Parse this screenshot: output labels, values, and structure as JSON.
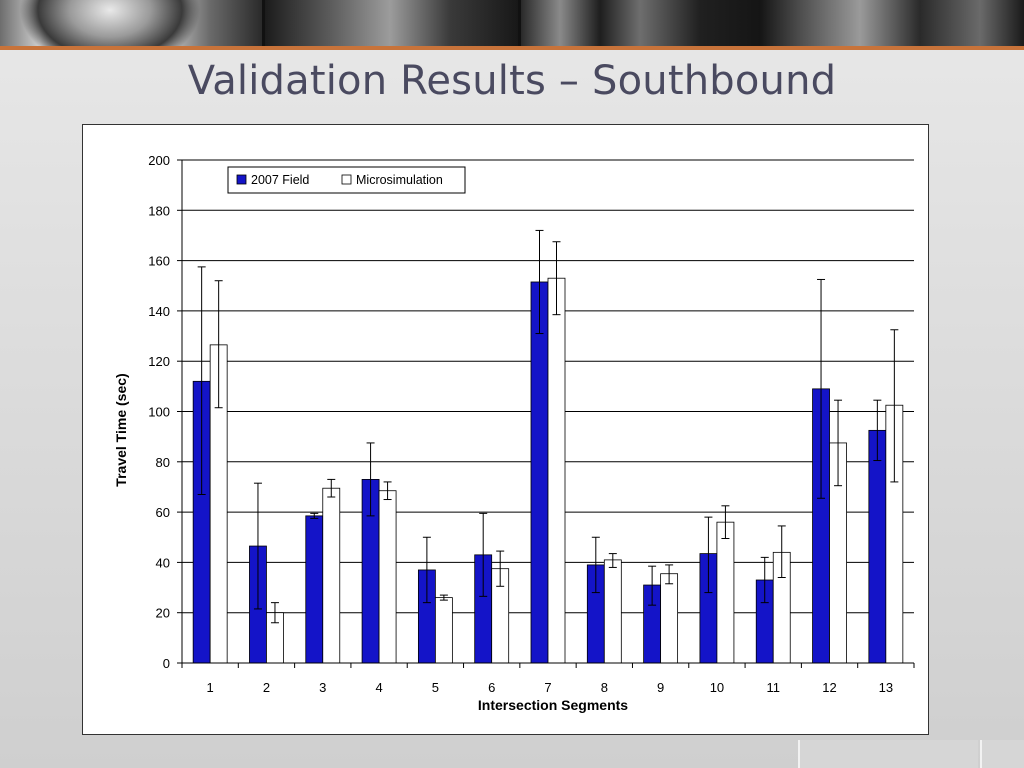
{
  "slide": {
    "title": "Validation Results – Southbound"
  },
  "colors": {
    "accent_rule": "#c8733a",
    "field_bar": "#1414c8",
    "micro_bar": "#ffffff"
  },
  "chart_data": {
    "type": "bar",
    "xlabel": "Intersection Segments",
    "ylabel": "Travel Time (sec)",
    "ylim": [
      0,
      200
    ],
    "yticks": [
      0,
      20,
      40,
      60,
      80,
      100,
      120,
      140,
      160,
      180,
      200
    ],
    "grid": true,
    "legend_position": "top-left",
    "categories": [
      "1",
      "2",
      "3",
      "4",
      "5",
      "6",
      "7",
      "8",
      "9",
      "10",
      "11",
      "12",
      "13"
    ],
    "series": [
      {
        "name": "2007 Field",
        "color": "#1414c8",
        "values": [
          112,
          46.5,
          58.5,
          73,
          37,
          43,
          151.5,
          39,
          31,
          43.5,
          33,
          109,
          92.5
        ],
        "error_low": [
          67,
          21.5,
          57.5,
          58.5,
          24,
          26.5,
          131,
          28,
          23,
          28,
          24,
          65.5,
          80.5
        ],
        "error_high": [
          157.5,
          71.5,
          59.5,
          87.5,
          50,
          59.5,
          172,
          50,
          38.5,
          58,
          42,
          152.5,
          104.5
        ]
      },
      {
        "name": "Microsimulation",
        "color": "#ffffff",
        "values": [
          126.5,
          20,
          69.5,
          68.5,
          26,
          37.5,
          153,
          41,
          35.5,
          56,
          44,
          87.5,
          102.5
        ],
        "error_low": [
          101.5,
          16,
          66,
          65,
          25,
          30.5,
          138.5,
          38,
          31.5,
          49.5,
          34,
          70.5,
          72
        ],
        "error_high": [
          152,
          24,
          73,
          72,
          27,
          44.5,
          167.5,
          43.5,
          39,
          62.5,
          54.5,
          104.5,
          132.5
        ]
      }
    ]
  }
}
